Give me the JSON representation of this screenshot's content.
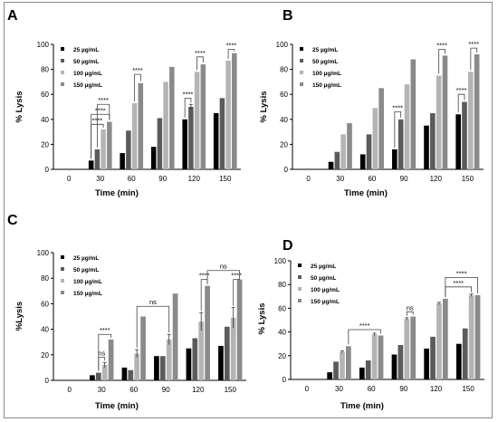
{
  "legend_labels": [
    "25 µg/mL",
    "50 µg/mL",
    "100 µg/mL",
    "150 µg/mL"
  ],
  "colors": {
    "series": [
      "#000000",
      "#5b5b5b",
      "#b4b4b4",
      "#8a8a8a"
    ],
    "axis": "#000000",
    "bracket": "#444444"
  },
  "chart_data": [
    {
      "panel": "A",
      "type": "bar",
      "categories": [
        "0",
        "30",
        "60",
        "90",
        "120",
        "150"
      ],
      "xlabel": "Time (min)",
      "ylabel": "% Lysis",
      "ylim": [
        0,
        100
      ],
      "yticks": [
        0,
        20,
        40,
        60,
        80,
        100
      ],
      "series": [
        {
          "name": "25 µg/mL",
          "values": [
            0,
            7,
            13,
            18,
            40,
            45
          ]
        },
        {
          "name": "50 µg/mL",
          "values": [
            0,
            16,
            31,
            41,
            50,
            57
          ]
        },
        {
          "name": "100 µg/mL",
          "values": [
            0,
            32,
            53,
            70,
            78,
            87
          ]
        },
        {
          "name": "150 µg/mL",
          "values": [
            0,
            38,
            69,
            82,
            84,
            93
          ]
        }
      ],
      "errors": [
        [
          0,
          0,
          0,
          0,
          0,
          0
        ],
        [
          0,
          0,
          0,
          0,
          2,
          0
        ],
        [
          0,
          0,
          0,
          0,
          0,
          0
        ],
        [
          0,
          0,
          0,
          0,
          0,
          0
        ]
      ],
      "annotations": [
        {
          "cat": 1,
          "from": 0,
          "to": 2,
          "y": 36,
          "text": "****"
        },
        {
          "cat": 1,
          "from": 0,
          "to": 3,
          "y": 44,
          "text": "****"
        },
        {
          "cat": 1,
          "from": 1,
          "to": 3,
          "y": 52,
          "text": "****"
        },
        {
          "cat": 2,
          "from": 2,
          "to": 3,
          "y": 76,
          "text": "****"
        },
        {
          "cat": 4,
          "from": 0,
          "to": 1,
          "y": 57,
          "text": "****"
        },
        {
          "cat": 4,
          "from": 2,
          "to": 3,
          "y": 90,
          "text": "****"
        },
        {
          "cat": 5,
          "from": 2,
          "to": 3,
          "y": 96,
          "text": "****"
        }
      ],
      "legend": "top-left"
    },
    {
      "panel": "B",
      "type": "bar",
      "categories": [
        "0",
        "30",
        "60",
        "90",
        "120",
        "150"
      ],
      "xlabel": "Time (min)",
      "ylabel": "% Lysis",
      "ylim": [
        0,
        100
      ],
      "yticks": [
        0,
        20,
        40,
        60,
        80,
        100
      ],
      "series": [
        {
          "name": "25 µg/mL",
          "values": [
            0,
            6,
            12,
            16,
            35,
            44
          ]
        },
        {
          "name": "50 µg/mL",
          "values": [
            0,
            14,
            28,
            40,
            45,
            54
          ]
        },
        {
          "name": "100 µg/mL",
          "values": [
            0,
            28,
            49,
            68,
            75,
            78
          ]
        },
        {
          "name": "150 µg/mL",
          "values": [
            0,
            37,
            65,
            88,
            91,
            92
          ]
        }
      ],
      "errors": [
        [
          0,
          0,
          0,
          0,
          0,
          0
        ],
        [
          0,
          0,
          0,
          0,
          0,
          0
        ],
        [
          0,
          0,
          0,
          0,
          0,
          0
        ],
        [
          0,
          0,
          0,
          0,
          0,
          0
        ]
      ],
      "annotations": [
        {
          "cat": 3,
          "from": 0,
          "to": 1,
          "y": 46,
          "text": "****"
        },
        {
          "cat": 4,
          "from": 2,
          "to": 3,
          "y": 96,
          "text": "****"
        },
        {
          "cat": 5,
          "from": 0,
          "to": 1,
          "y": 60,
          "text": "****"
        },
        {
          "cat": 5,
          "from": 2,
          "to": 3,
          "y": 97,
          "text": "****"
        }
      ],
      "legend": "top-left"
    },
    {
      "panel": "C",
      "type": "bar",
      "categories": [
        "0",
        "30",
        "60",
        "90",
        "120",
        "150"
      ],
      "xlabel": "Time (min)",
      "ylabel": "%Lysis",
      "ylim": [
        0,
        100
      ],
      "yticks": [
        0,
        20,
        40,
        60,
        80,
        100
      ],
      "series": [
        {
          "name": "25 µg/mL",
          "values": [
            0,
            4,
            10,
            19,
            25,
            27
          ]
        },
        {
          "name": "50 µg/mL",
          "values": [
            0,
            6,
            8,
            19,
            33,
            42
          ]
        },
        {
          "name": "100 µg/mL",
          "values": [
            0,
            12,
            21,
            32,
            46,
            49
          ]
        },
        {
          "name": "150 µg/mL",
          "values": [
            0,
            32,
            50,
            68,
            74,
            79
          ]
        }
      ],
      "errors": [
        [
          0,
          0,
          0,
          0,
          0,
          0
        ],
        [
          0,
          0,
          0,
          0,
          0,
          0
        ],
        [
          0,
          2,
          3,
          4,
          7,
          8
        ],
        [
          0,
          0,
          0,
          0,
          0,
          0
        ]
      ],
      "annotations": [
        {
          "cat": 1,
          "from": 1,
          "to": 2,
          "y": 18,
          "text": "ns"
        },
        {
          "cat": 1,
          "from": 1,
          "to": 3,
          "y": 36,
          "text": "****"
        },
        {
          "cat": 4,
          "from": 2,
          "to": 3,
          "y": 79,
          "text": "****"
        },
        {
          "cat": 5,
          "from": 2,
          "to": 3,
          "y": 79,
          "text": "****"
        }
      ],
      "spans": [
        {
          "c1": 2,
          "s1": 2,
          "c2": 3,
          "s2": 2,
          "y": 58,
          "text": "ns"
        },
        {
          "c1": 4,
          "s1": 3,
          "c2": 5,
          "s2": 3,
          "y": 86,
          "text": "ns"
        }
      ],
      "legend": "top-left"
    },
    {
      "panel": "D",
      "type": "bar",
      "categories": [
        "0",
        "30",
        "60",
        "90",
        "120",
        "150"
      ],
      "xlabel": "Time (min)",
      "ylabel": "% Lysis",
      "ylim": [
        0,
        100
      ],
      "yticks": [
        0,
        20,
        40,
        60,
        80,
        100
      ],
      "series": [
        {
          "name": "25 µg/mL",
          "values": [
            0,
            6,
            10,
            21,
            26,
            30
          ]
        },
        {
          "name": "50 µg/mL",
          "values": [
            0,
            15,
            16,
            29,
            36,
            43
          ]
        },
        {
          "name": "100 µg/mL",
          "values": [
            0,
            23,
            38,
            51,
            64,
            71
          ]
        },
        {
          "name": "150 µg/mL",
          "values": [
            0,
            28,
            37,
            53,
            68,
            71
          ]
        }
      ],
      "errors": [
        [
          0,
          0,
          0,
          0,
          0,
          0
        ],
        [
          0,
          0,
          0,
          0,
          0,
          0
        ],
        [
          0,
          1,
          1,
          1,
          1,
          1
        ],
        [
          0,
          0,
          0,
          0,
          0,
          0
        ]
      ],
      "annotations": [
        {
          "cat": 3,
          "from": 2,
          "to": 3,
          "y": 57,
          "text": "ns"
        }
      ],
      "spans": [
        {
          "c1": 1,
          "s1": 3,
          "c2": 2,
          "s2": 3,
          "y": 42,
          "text": "****"
        },
        {
          "c1": 4,
          "s1": 3,
          "c2": 5,
          "s2": 2,
          "y": 78,
          "text": "****"
        },
        {
          "c1": 4,
          "s1": 3,
          "c2": 5,
          "s2": 3,
          "y": 86,
          "text": "****"
        }
      ],
      "legend": "top-left"
    }
  ]
}
